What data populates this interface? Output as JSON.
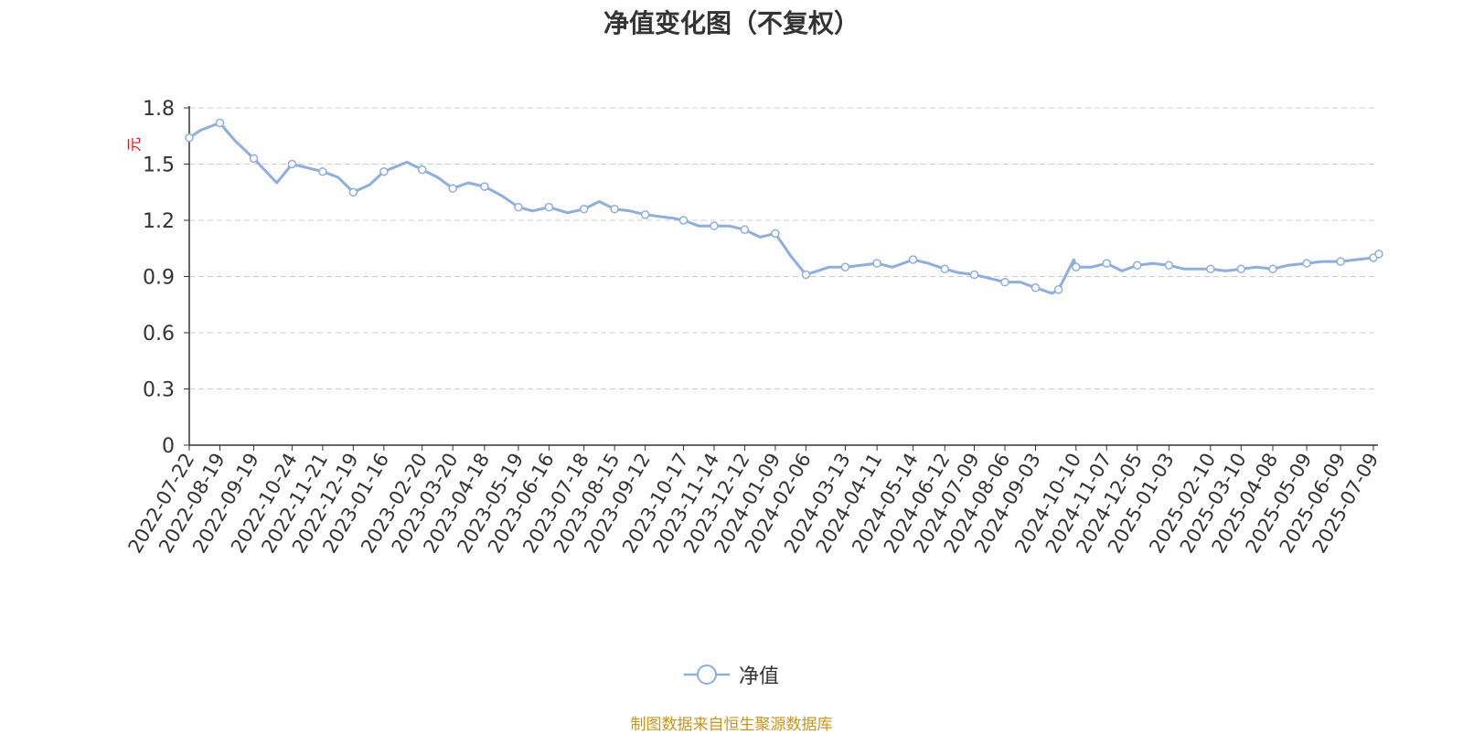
{
  "chart_data": {
    "type": "line",
    "title": "净值变化图（不复权）",
    "ylabel": "元",
    "ylim": [
      0,
      1.8
    ],
    "yticks": [
      "0",
      "0.3",
      "0.6",
      "0.9",
      "1.2",
      "1.5",
      "1.8"
    ],
    "x_tick_labels": [
      "2022-07-22",
      "2022-08-19",
      "2022-09-19",
      "2022-10-24",
      "2022-11-21",
      "2022-12-19",
      "2023-01-16",
      "2023-02-20",
      "2023-03-20",
      "2023-04-18",
      "2023-05-19",
      "2023-06-16",
      "2023-07-18",
      "2023-08-15",
      "2023-09-12",
      "2023-10-17",
      "2023-11-14",
      "2023-12-12",
      "2024-01-09",
      "2024-02-06",
      "2024-03-13",
      "2024-04-11",
      "2024-05-14",
      "2024-06-12",
      "2024-07-09",
      "2024-08-06",
      "2024-09-03",
      "2024-10-10",
      "2024-11-07",
      "2024-12-05",
      "2025-01-03",
      "2025-02-10",
      "2025-03-10",
      "2025-04-08",
      "2025-05-09",
      "2025-06-09",
      "2025-07-09"
    ],
    "grid": true,
    "legend_position": "bottom",
    "series": [
      {
        "name": "净值",
        "color": "#8eaedc",
        "x": [
          "2022-07-22",
          "2022-08-01",
          "2022-08-19",
          "2022-09-01",
          "2022-09-19",
          "2022-10-10",
          "2022-10-24",
          "2022-11-07",
          "2022-11-21",
          "2022-12-05",
          "2022-12-19",
          "2023-01-03",
          "2023-01-16",
          "2023-02-06",
          "2023-02-20",
          "2023-03-06",
          "2023-03-20",
          "2023-04-03",
          "2023-04-18",
          "2023-05-04",
          "2023-05-19",
          "2023-06-01",
          "2023-06-16",
          "2023-07-03",
          "2023-07-18",
          "2023-08-01",
          "2023-08-15",
          "2023-08-29",
          "2023-09-12",
          "2023-10-09",
          "2023-10-17",
          "2023-10-31",
          "2023-11-14",
          "2023-11-28",
          "2023-12-12",
          "2023-12-26",
          "2024-01-09",
          "2024-01-23",
          "2024-02-06",
          "2024-02-27",
          "2024-03-13",
          "2024-03-27",
          "2024-04-11",
          "2024-04-25",
          "2024-05-14",
          "2024-05-28",
          "2024-06-12",
          "2024-06-25",
          "2024-07-09",
          "2024-07-23",
          "2024-08-06",
          "2024-08-20",
          "2024-09-03",
          "2024-09-18",
          "2024-09-24",
          "2024-10-08",
          "2024-10-10",
          "2024-10-24",
          "2024-11-07",
          "2024-11-21",
          "2024-12-05",
          "2024-12-19",
          "2025-01-03",
          "2025-01-17",
          "2025-02-10",
          "2025-02-24",
          "2025-03-10",
          "2025-03-24",
          "2025-04-08",
          "2025-04-22",
          "2025-05-09",
          "2025-05-23",
          "2025-06-09",
          "2025-06-23",
          "2025-07-09",
          "2025-07-14"
        ],
        "y": [
          1.64,
          1.68,
          1.72,
          1.63,
          1.53,
          1.4,
          1.5,
          1.48,
          1.46,
          1.43,
          1.35,
          1.39,
          1.46,
          1.51,
          1.47,
          1.43,
          1.37,
          1.4,
          1.38,
          1.33,
          1.27,
          1.25,
          1.27,
          1.24,
          1.26,
          1.3,
          1.26,
          1.25,
          1.23,
          1.21,
          1.2,
          1.17,
          1.17,
          1.17,
          1.15,
          1.11,
          1.13,
          1.01,
          0.91,
          0.95,
          0.95,
          0.96,
          0.97,
          0.95,
          0.99,
          0.97,
          0.94,
          0.92,
          0.91,
          0.89,
          0.87,
          0.87,
          0.84,
          0.81,
          0.83,
          0.99,
          0.95,
          0.95,
          0.97,
          0.93,
          0.96,
          0.97,
          0.96,
          0.94,
          0.94,
          0.93,
          0.94,
          0.95,
          0.94,
          0.96,
          0.97,
          0.98,
          0.98,
          0.99,
          1.0,
          1.02
        ]
      }
    ]
  },
  "legend": {
    "label": "净值"
  },
  "source": "制图数据来自恒生聚源数据库"
}
